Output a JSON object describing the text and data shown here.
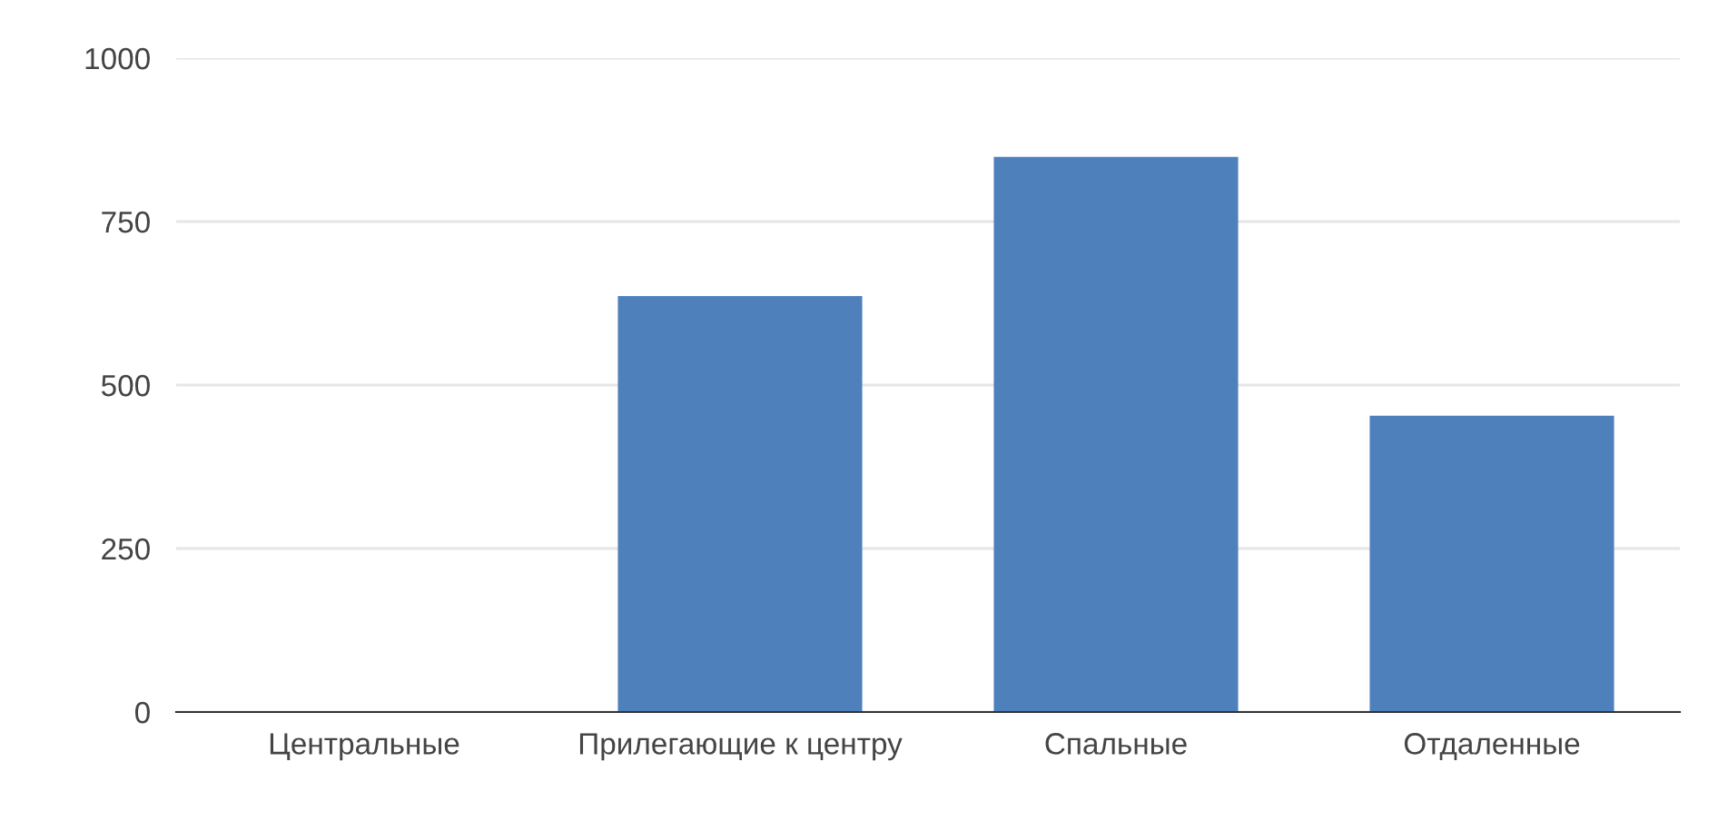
{
  "chart_data": {
    "type": "bar",
    "categories": [
      "Центральные",
      "Прилегающие к центру",
      "Спальные",
      "Отдаленные"
    ],
    "values": [
      0,
      636,
      849,
      453
    ],
    "color": "#4e80bc",
    "ylim": [
      0,
      1000
    ],
    "yticks": [
      0,
      250,
      500,
      750,
      1000
    ],
    "grid": "y"
  }
}
